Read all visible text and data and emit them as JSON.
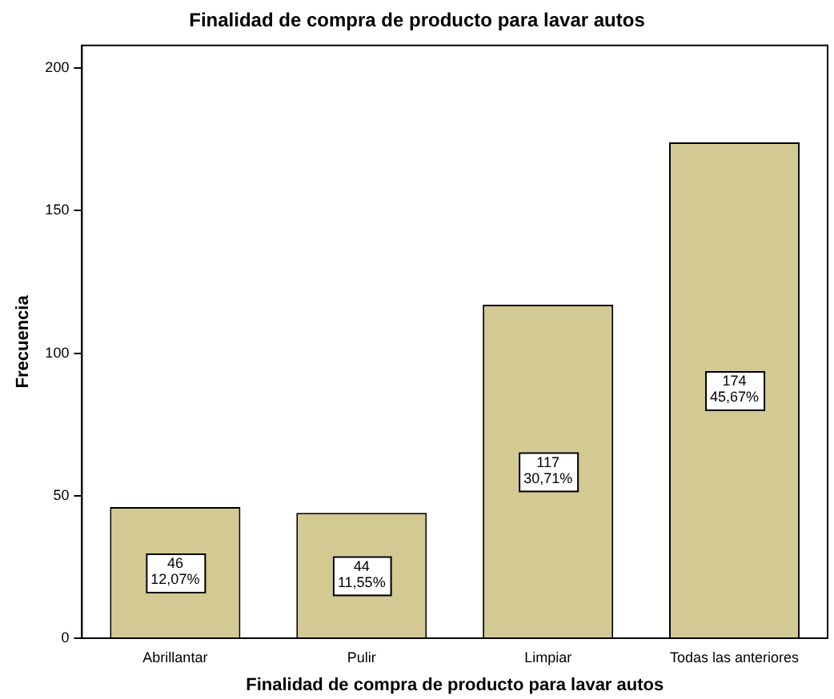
{
  "chart_data": {
    "type": "bar",
    "title": "Finalidad de compra de producto para lavar autos",
    "xlabel": "Finalidad de compra de producto para lavar autos",
    "ylabel": "Frecuencia",
    "categories": [
      "Abrillantar",
      "Pulir",
      "Limpiar",
      "Todas las anteriores"
    ],
    "values": [
      46,
      44,
      117,
      174
    ],
    "color": "#d3ca93",
    "value_labels": [
      "46\n12,07%",
      "44\n11,55%",
      "117\n30,71%",
      "174\n45,67%"
    ],
    "ylim": [
      0,
      208
    ],
    "yticks": [
      0,
      50,
      100,
      150,
      200
    ],
    "grid": false,
    "legend": false
  }
}
